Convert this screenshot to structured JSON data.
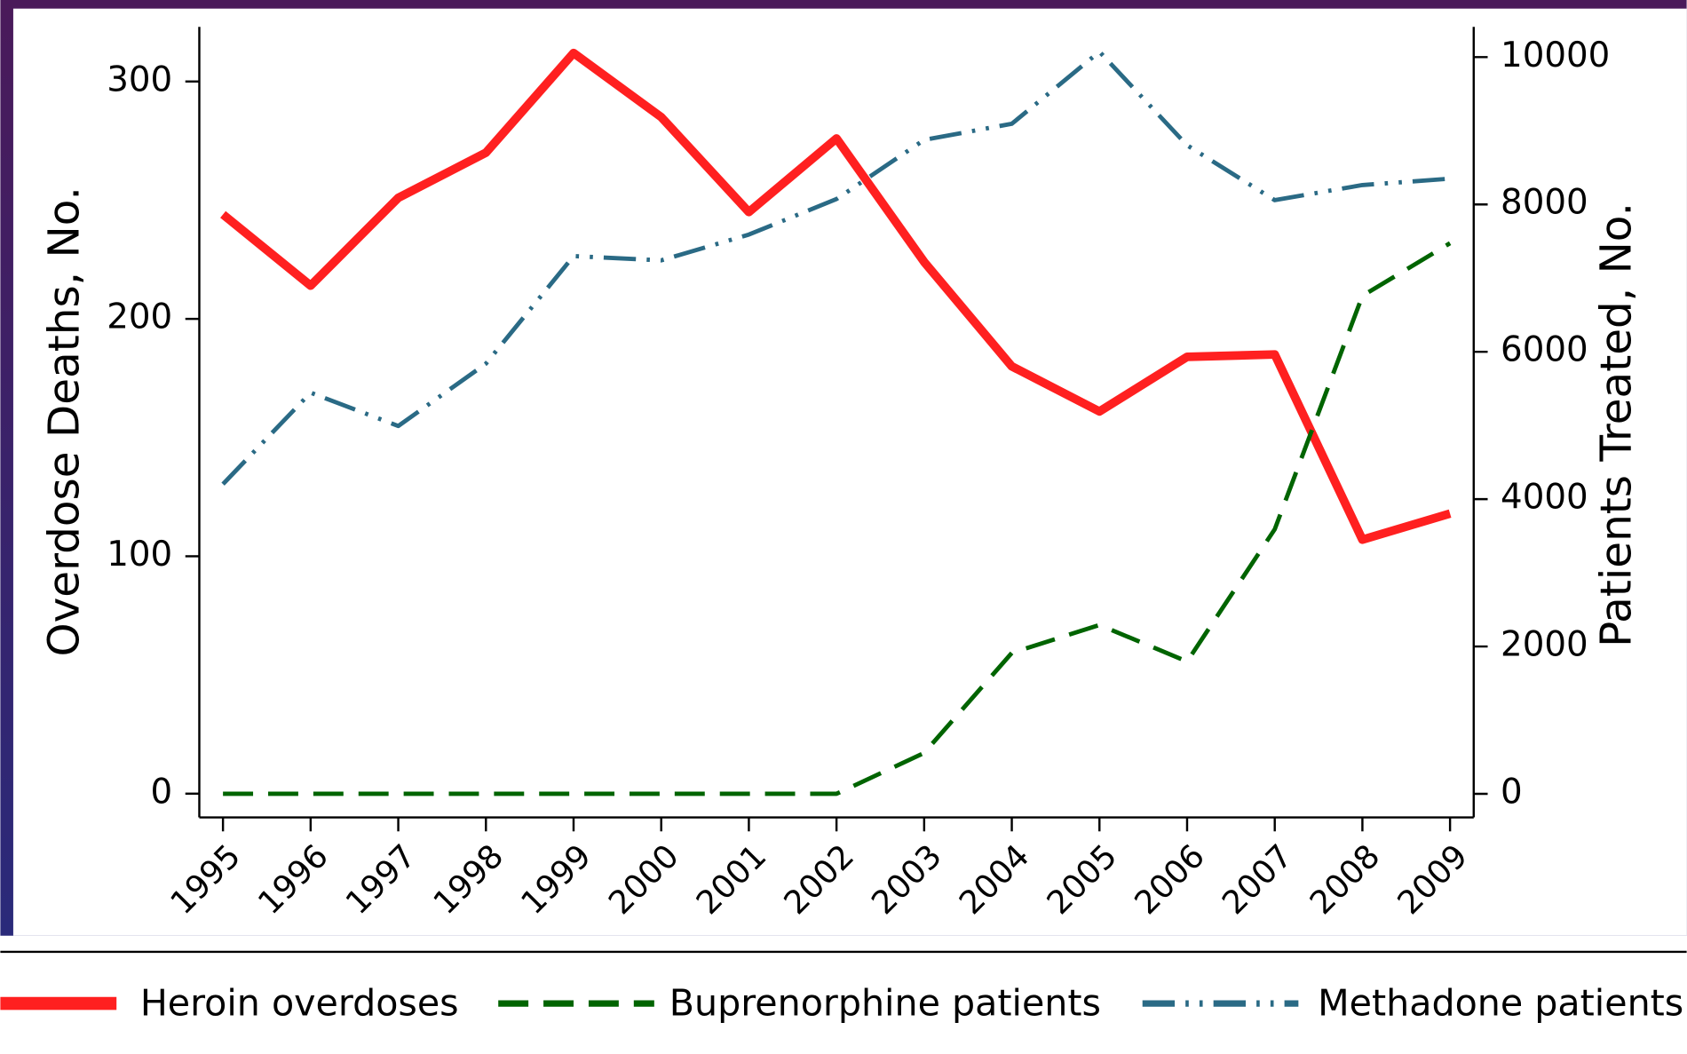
{
  "chart_data": {
    "type": "line",
    "y_label": "Overdose Deaths, No.",
    "y2_label": "Patients Treated, No.",
    "x": [
      1995,
      1996,
      1997,
      1998,
      1999,
      2000,
      2001,
      2002,
      2003,
      2004,
      2005,
      2006,
      2007,
      2008,
      2009
    ],
    "xlim": [
      1994.73,
      2009.27
    ],
    "xticks": [
      1995,
      1996,
      1997,
      1998,
      1999,
      2000,
      2001,
      2002,
      2003,
      2004,
      2005,
      2006,
      2007,
      2008,
      2009
    ],
    "ylim": [
      -10,
      323
    ],
    "yticks": [
      0,
      100,
      200,
      300
    ],
    "y2lim": [
      -320,
      10410
    ],
    "y2ticks": [
      0,
      2000,
      4000,
      6000,
      8000,
      10000
    ],
    "legend": "bottom",
    "series": [
      {
        "name": "Heroin overdoses",
        "color": "#ff2020",
        "style": "solid",
        "values": [
          244,
          214,
          251,
          270,
          312,
          285,
          245,
          276,
          224,
          180,
          161,
          184,
          185,
          107,
          118
        ]
      },
      {
        "name": "Buprenorphine patients",
        "color": "#006400",
        "style": "dashed",
        "axis": "y2",
        "values": [
          0,
          0,
          0,
          0,
          0,
          0,
          0,
          0,
          555,
          1912,
          2292,
          1796,
          3591,
          6759,
          7474
        ]
      },
      {
        "name": "Methadone patients",
        "color": "#2a6a85",
        "style": "dashdotdot",
        "axis": "y2",
        "values": [
          4204,
          5445,
          4993,
          5839,
          7299,
          7241,
          7591,
          8073,
          8876,
          9095,
          10073,
          8803,
          8058,
          8263,
          8350
        ]
      }
    ]
  }
}
